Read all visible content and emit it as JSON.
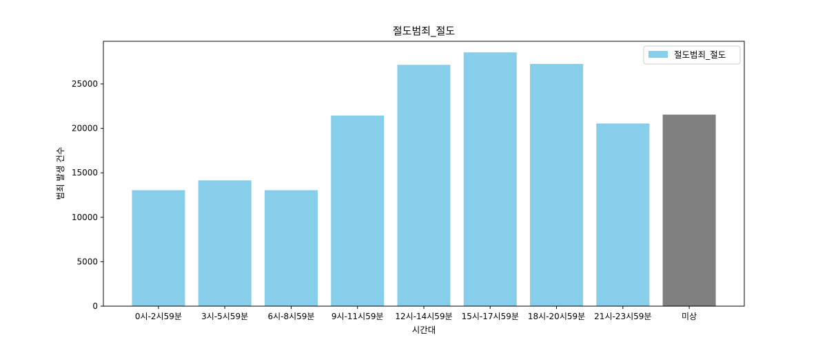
{
  "chart_data": {
    "type": "bar",
    "title": "절도범죄_절도",
    "xlabel": "시간대",
    "ylabel": "범죄 발생 건수",
    "categories": [
      "0시-2시59분",
      "3시-5시59분",
      "6시-8시59분",
      "9시-11시59분",
      "12시-14시59분",
      "15시-17시59분",
      "18시-20시59분",
      "21시-23시59분",
      "미상"
    ],
    "series": [
      {
        "name": "절도범죄_절도",
        "values": [
          13050,
          14150,
          13050,
          21450,
          27150,
          28550,
          27250,
          20550,
          21550
        ]
      }
    ],
    "bar_colors": [
      "#87ceeb",
      "#87ceeb",
      "#87ceeb",
      "#87ceeb",
      "#87ceeb",
      "#87ceeb",
      "#87ceeb",
      "#87ceeb",
      "#808080"
    ],
    "ylim": [
      0,
      29800
    ],
    "yticks": [
      0,
      5000,
      10000,
      15000,
      20000,
      25000
    ],
    "grid": false,
    "legend_position": "top-right"
  }
}
